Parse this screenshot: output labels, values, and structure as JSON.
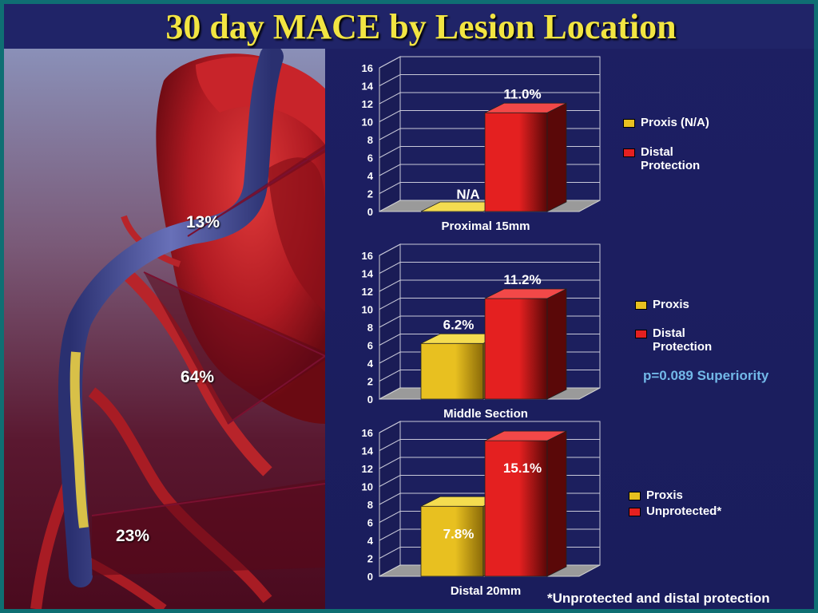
{
  "title": "30 day MACE by Lesion Location",
  "heart": {
    "proximal_pct": "13%",
    "middle_pct": "64%",
    "distal_pct": "23%"
  },
  "colors": {
    "proxis": "#e8c020",
    "distal": "#e42020",
    "pvalue": "#72b8e8"
  },
  "chart_data": [
    {
      "type": "bar",
      "xlabel": "Proximal 15mm",
      "ylim": [
        0,
        16
      ],
      "yticks": [
        "0",
        "2",
        "4",
        "6",
        "8",
        "10",
        "12",
        "14",
        "16"
      ],
      "series": [
        {
          "name": "Proxis (N/A)",
          "value": 0,
          "label": "N/A"
        },
        {
          "name": "Distal Protection",
          "value": 11.0,
          "label": "11.0%"
        }
      ]
    },
    {
      "type": "bar",
      "xlabel": "Middle Section",
      "ylim": [
        0,
        16
      ],
      "yticks": [
        "0",
        "2",
        "4",
        "6",
        "8",
        "10",
        "12",
        "14",
        "16"
      ],
      "series": [
        {
          "name": "Proxis",
          "value": 6.2,
          "label": "6.2%"
        },
        {
          "name": "Distal Protection",
          "value": 11.2,
          "label": "11.2%"
        }
      ],
      "annotation": "p=0.089 Superiority"
    },
    {
      "type": "bar",
      "xlabel": "Distal 20mm",
      "ylim": [
        0,
        16
      ],
      "yticks": [
        "0",
        "2",
        "4",
        "6",
        "8",
        "10",
        "12",
        "14",
        "16"
      ],
      "series": [
        {
          "name": "Proxis",
          "value": 7.8,
          "label": "7.8%"
        },
        {
          "name": "Unprotected*",
          "value": 15.1,
          "label": "15.1%"
        }
      ]
    }
  ],
  "legends": [
    {
      "proxis": "Proxis (N/A)",
      "distal": "Distal\nProtection"
    },
    {
      "proxis": "Proxis",
      "distal": "Distal\nProtection"
    },
    {
      "proxis": "Proxis",
      "distal": "Unprotected*"
    }
  ],
  "footnote": "*Unprotected and distal protection"
}
